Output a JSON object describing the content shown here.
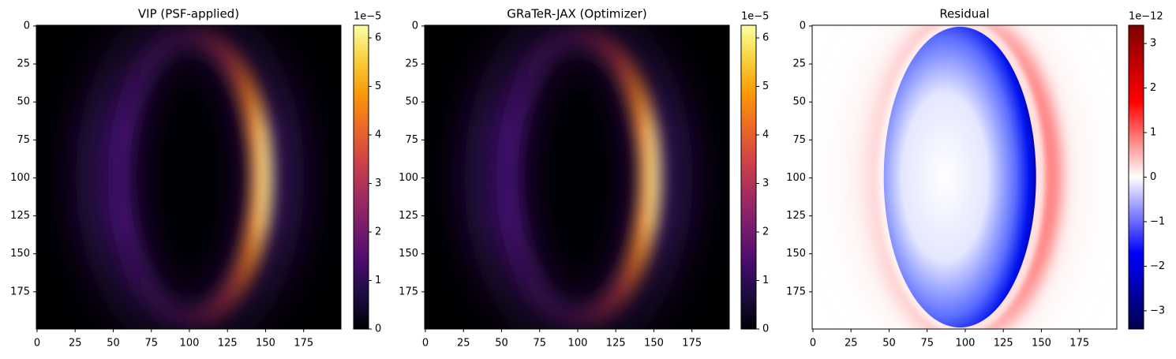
{
  "chart_data": [
    {
      "type": "heatmap",
      "title": "VIP (PSF-applied)",
      "xlim": [
        -0.5,
        199.5
      ],
      "ylim": [
        199.5,
        -0.5
      ],
      "xticks": [
        0,
        25,
        50,
        75,
        100,
        125,
        150,
        175
      ],
      "yticks": [
        0,
        25,
        50,
        75,
        100,
        125,
        150,
        175
      ],
      "colormap": "inferno",
      "clim": [
        0,
        6.26
      ],
      "cticks": [
        0,
        1,
        2,
        3,
        4,
        5,
        6
      ],
      "c_offset_label": "1e−5"
    },
    {
      "type": "heatmap",
      "title": "GRaTeR-JAX (Optimizer)",
      "xlim": [
        -0.5,
        199.5
      ],
      "ylim": [
        199.5,
        -0.5
      ],
      "xticks": [
        0,
        25,
        50,
        75,
        100,
        125,
        150,
        175
      ],
      "yticks": [
        0,
        25,
        50,
        75,
        100,
        125,
        150,
        175
      ],
      "colormap": "inferno",
      "clim": [
        0,
        6.26
      ],
      "cticks": [
        0,
        1,
        2,
        3,
        4,
        5,
        6
      ],
      "c_offset_label": "1e−5"
    },
    {
      "type": "heatmap",
      "title": "Residual",
      "xlim": [
        -0.5,
        199.5
      ],
      "ylim": [
        199.5,
        -0.5
      ],
      "xticks": [
        0,
        25,
        50,
        75,
        100,
        125,
        150,
        175
      ],
      "yticks": [
        0,
        25,
        50,
        75,
        100,
        125,
        150,
        175
      ],
      "colormap": "seismic",
      "clim": [
        -3.41,
        3.41
      ],
      "cticks": [
        {
          "value": -3,
          "label": "−3"
        },
        {
          "value": -2,
          "label": "−2"
        },
        {
          "value": -1,
          "label": "−1"
        },
        0,
        1,
        2,
        3
      ],
      "c_offset_label": "1e−12"
    }
  ]
}
